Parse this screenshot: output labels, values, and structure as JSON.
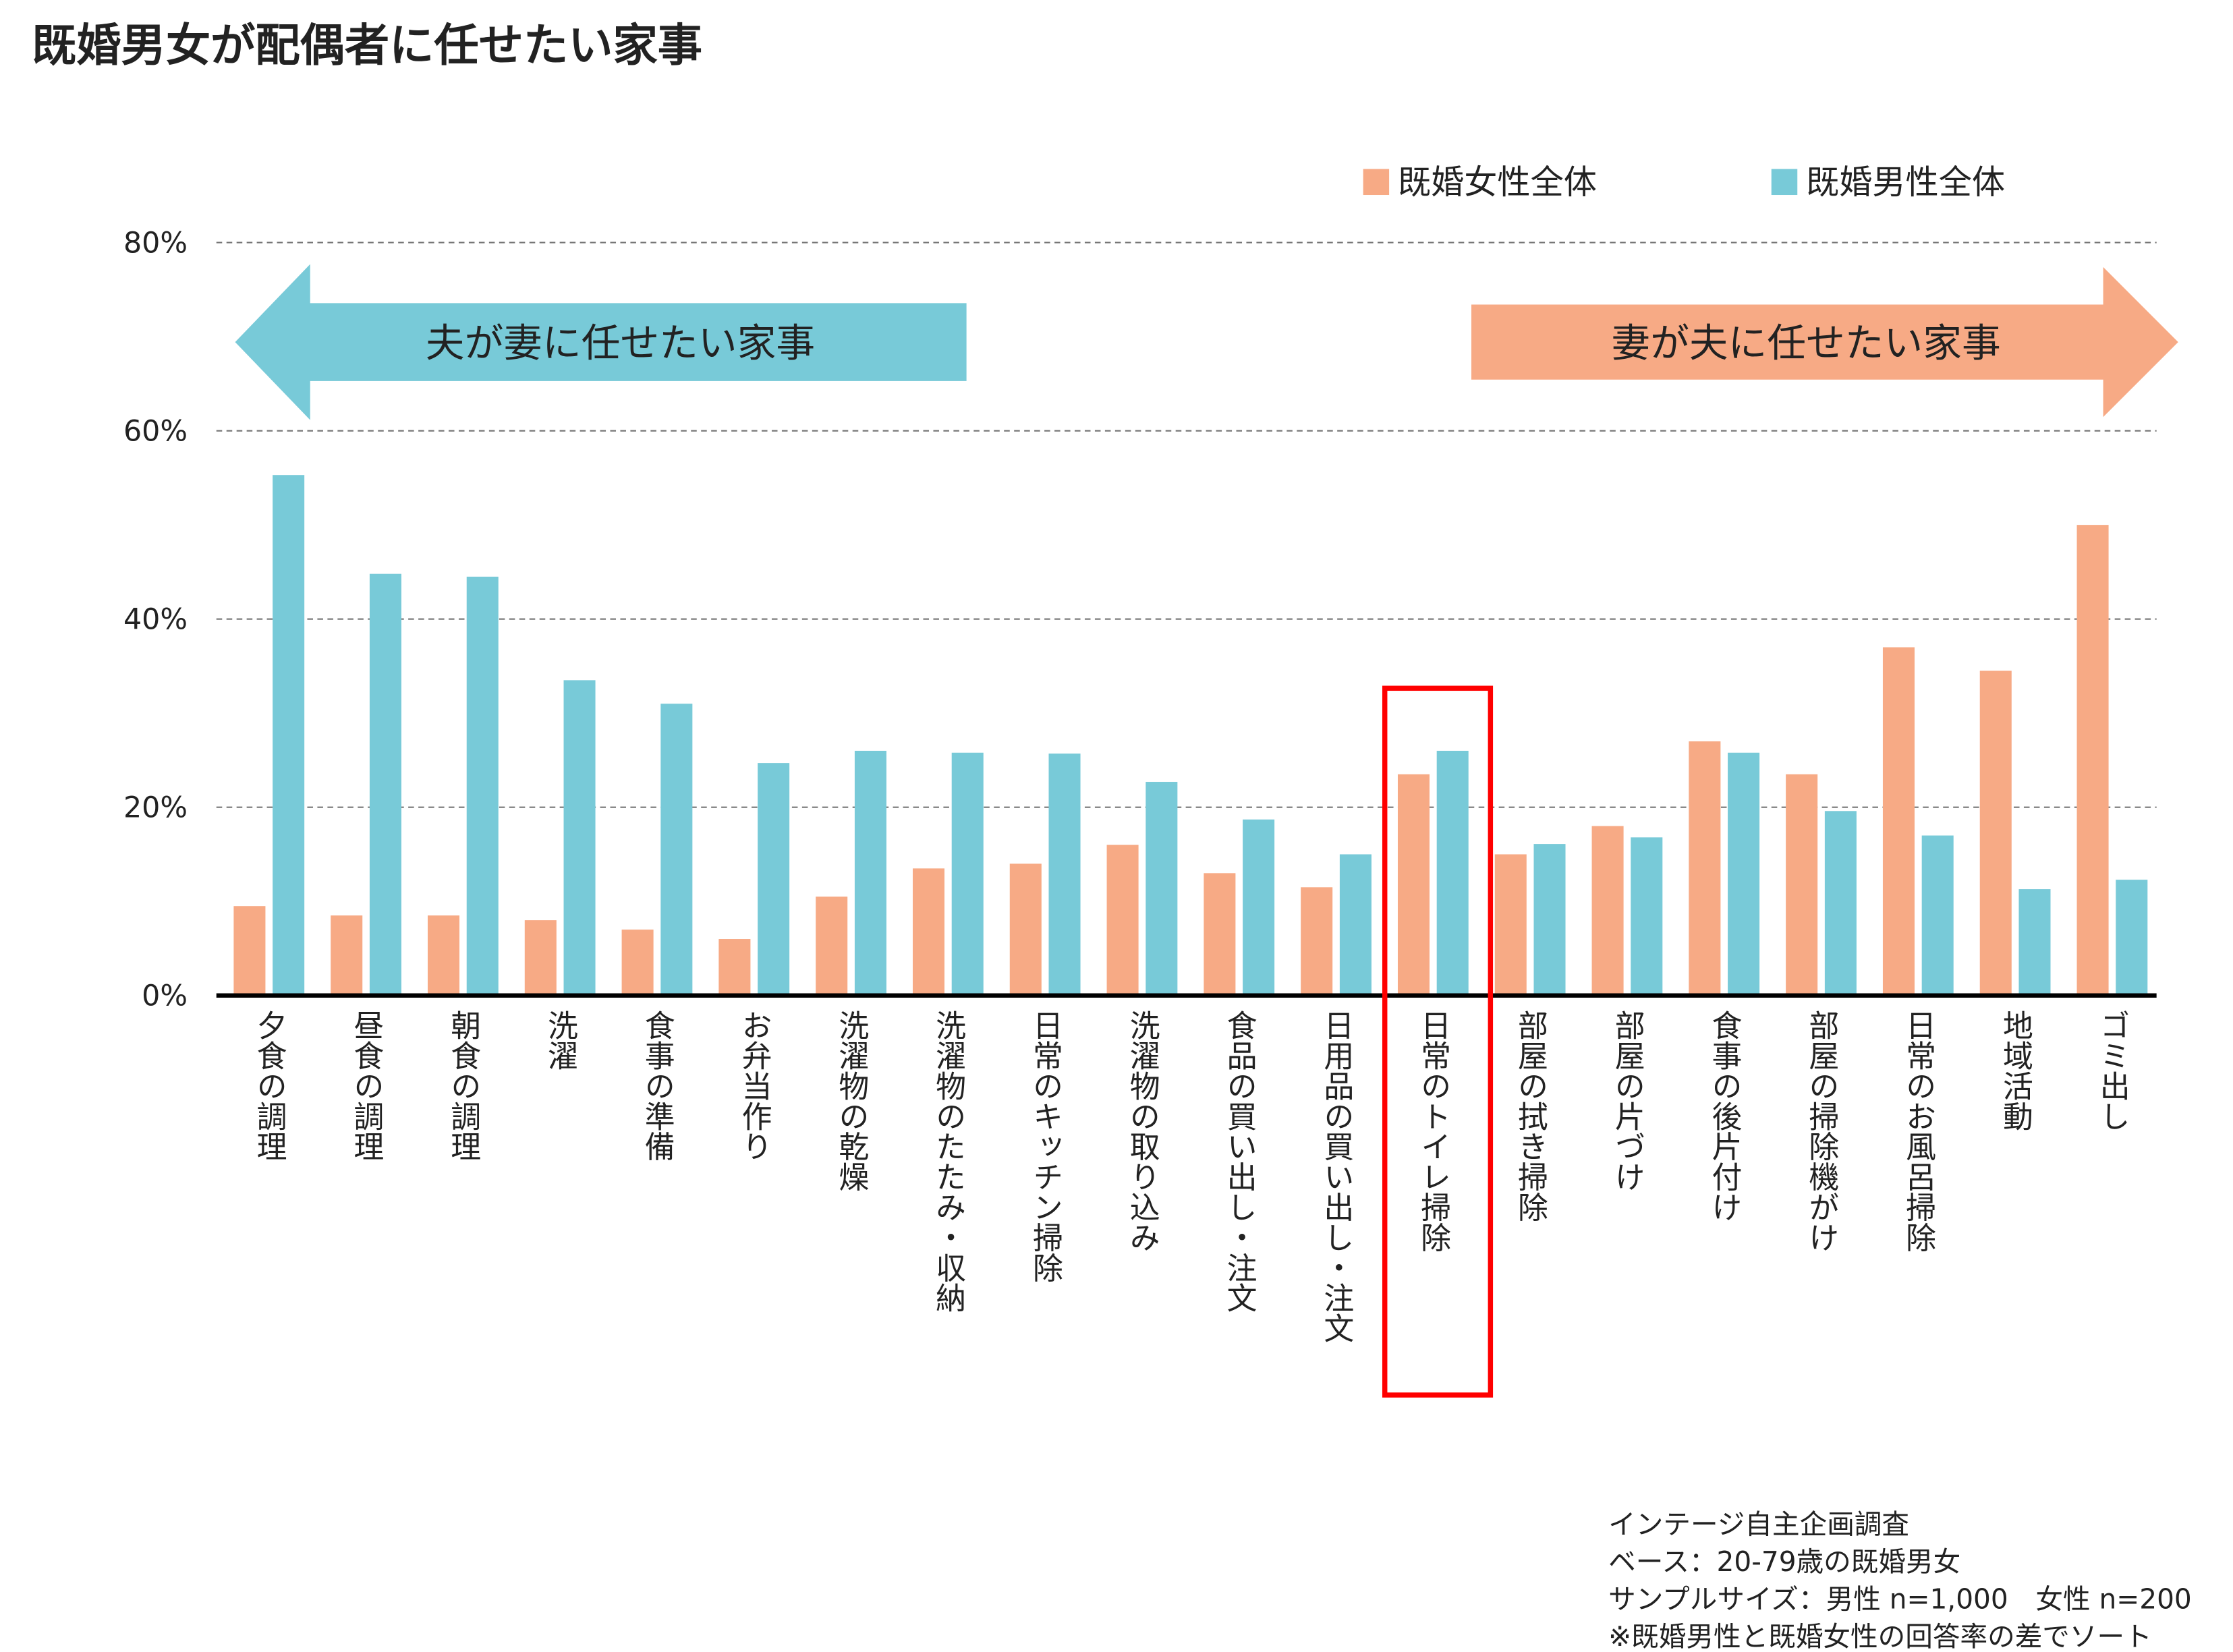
{
  "chart_data": {
    "type": "bar",
    "title": "既婚男女が配偶者に任せたい家事",
    "categories": [
      "夕食の調理",
      "昼食の調理",
      "朝食の調理",
      "洗濯",
      "食事の準備",
      "お弁当作り",
      "洗濯物の乾燥",
      "洗濯物のたたみ・収納",
      "日常のキッチン掃除",
      "洗濯物の取り込み",
      "食品の買い出し・注文",
      "日用品の買い出し・注文",
      "日常のトイレ掃除",
      "部屋の拭き掃除",
      "部屋の片づけ",
      "食事の後片付け",
      "部屋の掃除機がけ",
      "日常のお風呂掃除",
      "地域活動",
      "ゴミ出し"
    ],
    "series": [
      {
        "name": "既婚女性全体",
        "color": "#f7aa85",
        "values": [
          9.5,
          8.5,
          8.5,
          8,
          7,
          6,
          10.5,
          13.5,
          14,
          16,
          13,
          11.5,
          23.5,
          15,
          18,
          27,
          23.5,
          37,
          34.5,
          50
        ]
      },
      {
        "name": "既婚男性全体",
        "color": "#78cad8",
        "values": [
          55.3,
          44.8,
          44.5,
          33.5,
          31,
          24.7,
          26,
          25.8,
          25.7,
          22.7,
          18.7,
          15,
          26,
          16.1,
          16.8,
          25.8,
          19.6,
          17,
          11.3,
          12.3
        ]
      }
    ],
    "ylim": [
      0,
      80
    ],
    "yticks": [
      {
        "value": 0,
        "label": "0%"
      },
      {
        "value": 20,
        "label": "20%"
      },
      {
        "value": 40,
        "label": "40%"
      },
      {
        "value": 60,
        "label": "60%"
      },
      {
        "value": 80,
        "label": "80%"
      }
    ],
    "grid": true,
    "legend_position": "top-right",
    "annotations": [
      "夫が妻に任せたい家事",
      "妻が夫に任せたい家事"
    ],
    "notes": [
      "インテージ自主企画調査",
      "ベース：20-79歳の既婚男女",
      "サンプルサイズ：男性 n=1,000　女性 n=200",
      "※既婚男性と既婚女性の回答率の差でソート"
    ]
  }
}
